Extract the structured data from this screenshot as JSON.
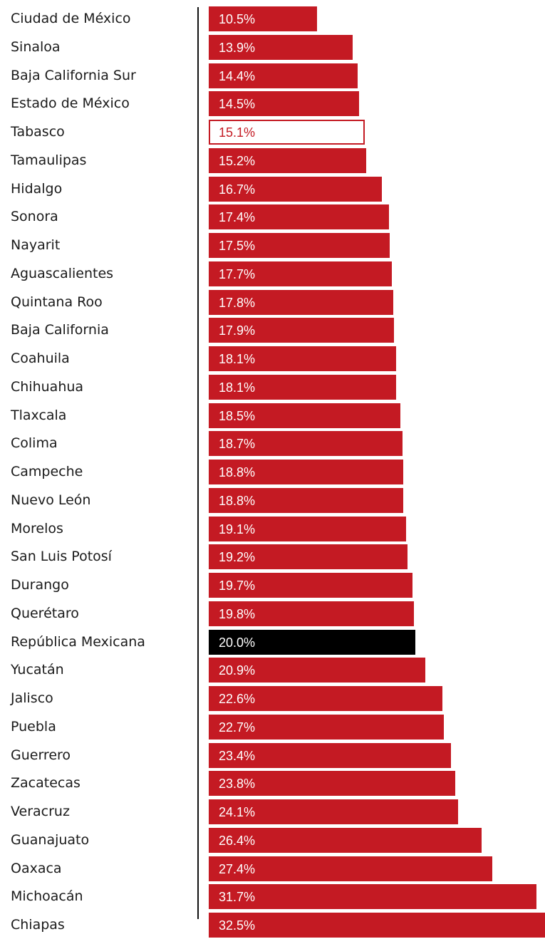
{
  "chart_data": {
    "type": "bar",
    "orientation": "horizontal",
    "title": "",
    "xlabel": "",
    "ylabel": "",
    "xlim": [
      0,
      32.5
    ],
    "categories": [
      "Ciudad de México",
      "Sinaloa",
      "Baja California Sur",
      "Estado de México",
      "Tabasco",
      "Tamaulipas",
      "Hidalgo",
      "Sonora",
      "Nayarit",
      "Aguascalientes",
      "Quintana Roo",
      "Baja California",
      "Coahuila",
      "Chihuahua",
      "Tlaxcala",
      "Colima",
      "Campeche",
      "Nuevo León",
      "Morelos",
      "San Luis Potosí",
      "Durango",
      "Querétaro",
      "República Mexicana",
      "Yucatán",
      "Jalisco",
      "Puebla",
      "Guerrero",
      "Zacatecas",
      "Veracruz",
      "Guanajuato",
      "Oaxaca",
      "Michoacán",
      "Chiapas"
    ],
    "values": [
      10.5,
      13.9,
      14.4,
      14.5,
      15.1,
      15.2,
      16.7,
      17.4,
      17.5,
      17.7,
      17.8,
      17.9,
      18.1,
      18.1,
      18.5,
      18.7,
      18.8,
      18.8,
      19.1,
      19.2,
      19.7,
      19.8,
      20.0,
      20.9,
      22.6,
      22.7,
      23.4,
      23.8,
      24.1,
      26.4,
      27.4,
      31.7,
      32.5
    ],
    "value_labels": [
      "10.5%",
      "13.9%",
      "14.4%",
      "14.5%",
      "15.1%",
      "15.2%",
      "16.7%",
      "17.4%",
      "17.5%",
      "17.7%",
      "17.8%",
      "17.9%",
      "18.1%",
      "18.1%",
      "18.5%",
      "18.7%",
      "18.8%",
      "18.8%",
      "19.1%",
      "19.2%",
      "19.7%",
      "19.8%",
      "20.0%",
      "20.9%",
      "22.6%",
      "22.7%",
      "23.4%",
      "23.8%",
      "24.1%",
      "26.4%",
      "27.4%",
      "31.7%",
      "32.5%"
    ],
    "highlight": {
      "outlined": "Tabasco",
      "national": "República Mexicana"
    },
    "colors": {
      "bar": "#c41a23",
      "national": "#000000",
      "outline_fill": "#ffffff",
      "label": "#ffffff",
      "outlined_label": "#c41a23"
    },
    "grid": false,
    "legend": "none"
  }
}
